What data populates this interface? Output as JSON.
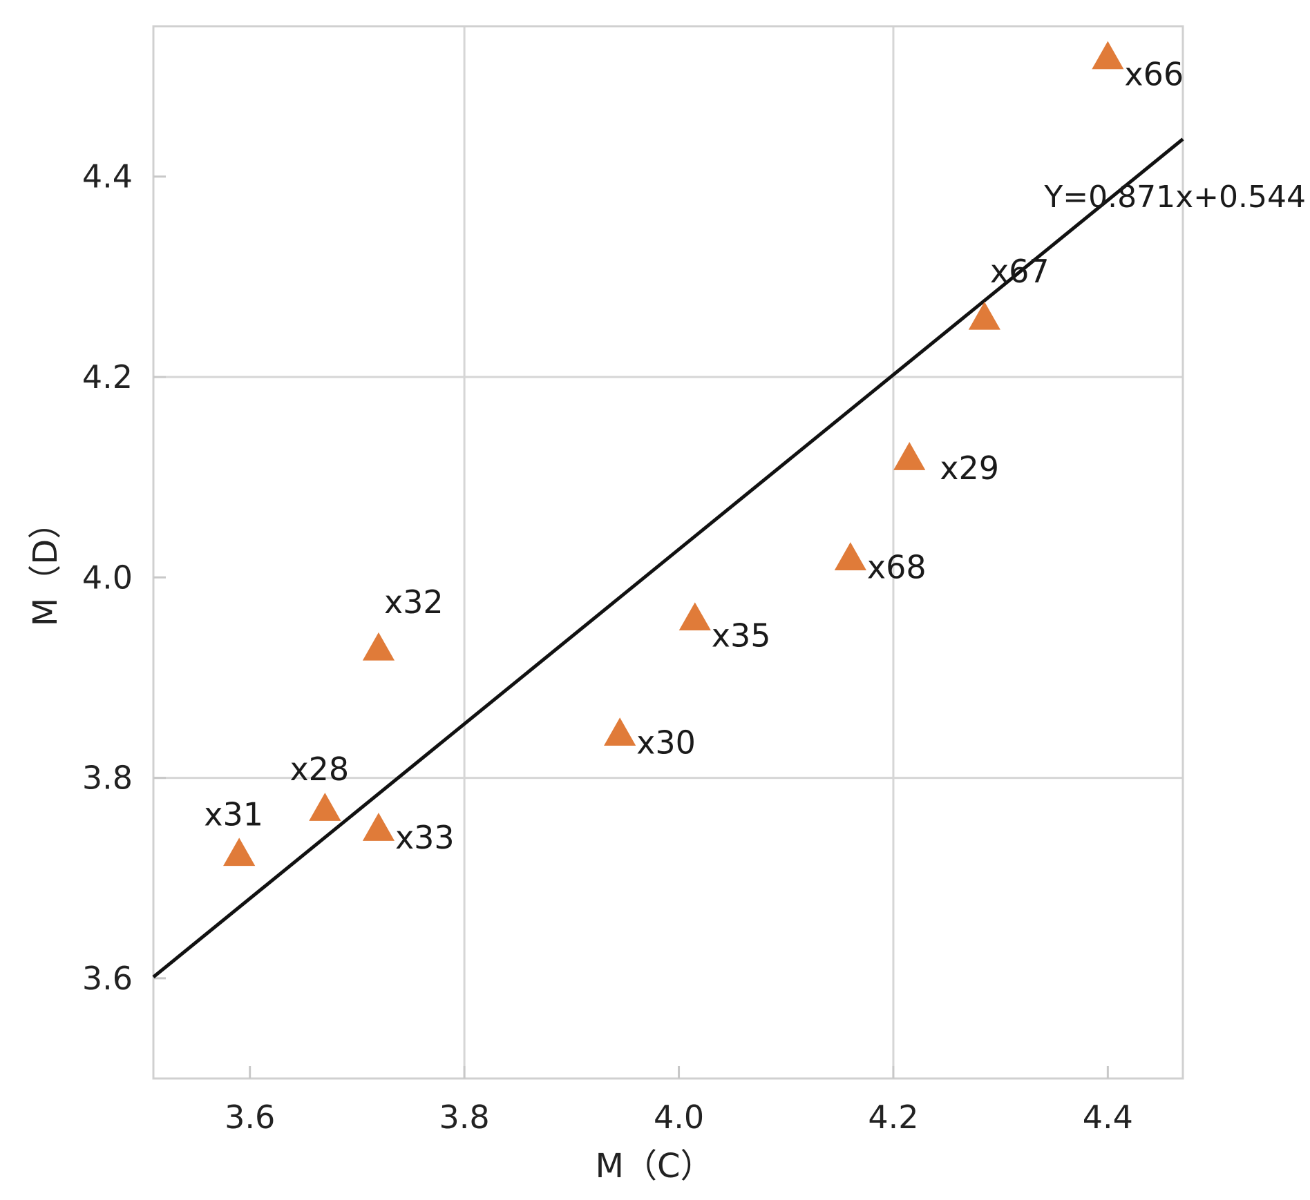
{
  "chart_data": {
    "type": "scatter",
    "title": "",
    "xlabel": "M（C）",
    "ylabel": "M（D）",
    "xlim": [
      3.51,
      4.47
    ],
    "ylim": [
      3.5,
      4.55
    ],
    "xticks": [
      3.6,
      3.8,
      4.0,
      4.2,
      4.4
    ],
    "yticks": [
      3.6,
      3.8,
      4.0,
      4.2,
      4.4
    ],
    "xtick_labels": [
      "3.6",
      "3.8",
      "4.0",
      "4.2",
      "4.4"
    ],
    "ytick_labels": [
      "3.6",
      "3.8",
      "4.0",
      "4.2",
      "4.4"
    ],
    "grid": true,
    "marker": "triangle",
    "marker_color": "#E07B39",
    "series": [
      {
        "points": [
          {
            "label": "x66",
            "x": 4.4,
            "y": 4.52,
            "label_pos": "below-right"
          },
          {
            "label": "x67",
            "x": 4.285,
            "y": 4.26,
            "label_pos": "above-right"
          },
          {
            "label": "x29",
            "x": 4.215,
            "y": 4.12,
            "label_pos": "below-right-far"
          },
          {
            "label": "x68",
            "x": 4.16,
            "y": 4.02,
            "label_pos": "right"
          },
          {
            "label": "x35",
            "x": 4.015,
            "y": 3.96,
            "label_pos": "below-right"
          },
          {
            "label": "x30",
            "x": 3.945,
            "y": 3.845,
            "label_pos": "right"
          },
          {
            "label": "x32",
            "x": 3.72,
            "y": 3.93,
            "label_pos": "above-right"
          },
          {
            "label": "x28",
            "x": 3.67,
            "y": 3.77,
            "label_pos": "above-left"
          },
          {
            "label": "x33",
            "x": 3.72,
            "y": 3.75,
            "label_pos": "right"
          },
          {
            "label": "x31",
            "x": 3.59,
            "y": 3.725,
            "label_pos": "above-left"
          }
        ]
      }
    ],
    "trendline": {
      "slope": 0.871,
      "intercept": 0.544,
      "x_range": [
        3.51,
        4.47
      ],
      "equation": "Y=0.871x+0.544",
      "color": "#111111"
    }
  }
}
